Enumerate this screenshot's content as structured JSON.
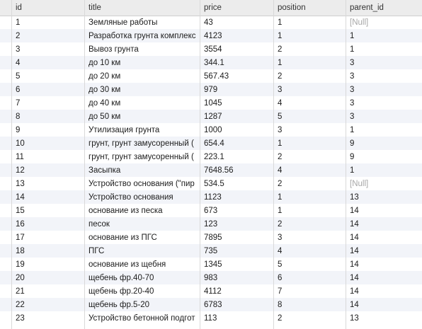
{
  "columns": [
    "id",
    "title",
    "price",
    "position",
    "parent_id"
  ],
  "rows": [
    [
      "1",
      "Земляные работы",
      "43",
      "1",
      "[Null]"
    ],
    [
      "2",
      "Разработка грунта комплекс",
      "4123",
      "1",
      "1"
    ],
    [
      "3",
      "Вывоз грунта",
      "3554",
      "2",
      "1"
    ],
    [
      "4",
      "до 10 км",
      "344.1",
      "1",
      "3"
    ],
    [
      "5",
      "до 20 км",
      "567.43",
      "2",
      "3"
    ],
    [
      "6",
      "до 30 км",
      "979",
      "3",
      "3"
    ],
    [
      "7",
      "до 40 км",
      "1045",
      "4",
      "3"
    ],
    [
      "8",
      "до 50 км",
      "1287",
      "5",
      "3"
    ],
    [
      "9",
      "Утилизация грунта",
      "1000",
      "3",
      "1"
    ],
    [
      "10",
      "грунт, грунт замусоренный (",
      "654.4",
      "1",
      "9"
    ],
    [
      "11",
      "грунт, грунт замусоренный (",
      "223.1",
      "2",
      "9"
    ],
    [
      "12",
      "Засыпка",
      "7648.56",
      "4",
      "1"
    ],
    [
      "13",
      "Устройство основания (\"пир",
      "534.5",
      "2",
      "[Null]"
    ],
    [
      "14",
      "Устройство основания",
      "1123",
      "1",
      "13"
    ],
    [
      "15",
      "основание из песка",
      "673",
      "1",
      "14"
    ],
    [
      "16",
      "песок",
      "123",
      "2",
      "14"
    ],
    [
      "17",
      "основание из ПГС",
      "7895",
      "3",
      "14"
    ],
    [
      "18",
      "ПГС",
      "735",
      "4",
      "14"
    ],
    [
      "19",
      "основание из щебня",
      "1345",
      "5",
      "14"
    ],
    [
      "20",
      "щебень фр.40-70",
      "983",
      "6",
      "14"
    ],
    [
      "21",
      "щебень фр.20-40",
      "4112",
      "7",
      "14"
    ],
    [
      "22",
      "щебень фр.5-20",
      "6783",
      "8",
      "14"
    ],
    [
      "23",
      "Устройство бетонной подгот",
      "113",
      "2",
      "13"
    ]
  ]
}
